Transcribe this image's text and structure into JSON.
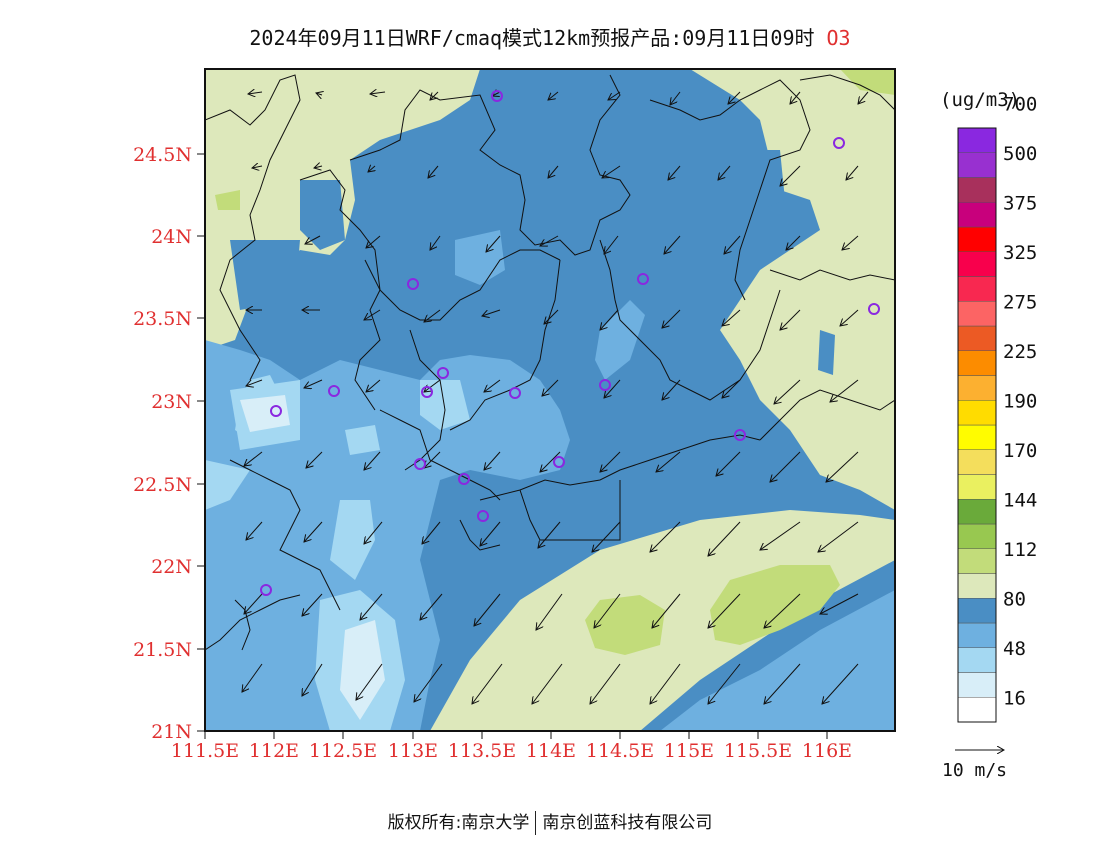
{
  "title": {
    "main": "2024年09月11日WRF/cmaq模式12km预报产品:09月11日09时",
    "species": "O3"
  },
  "colorbar": {
    "unit": "(ug/m3)",
    "labels": [
      "16",
      "48",
      "80",
      "112",
      "144",
      "170",
      "190",
      "225",
      "275",
      "325",
      "375",
      "500",
      "700"
    ],
    "colors": [
      "#ffffff",
      "#d8eef8",
      "#a4d8f2",
      "#6eb0e0",
      "#4a8ec4",
      "#dde8bb",
      "#c2dc7a",
      "#98c850",
      "#6aaa3a",
      "#eaf060",
      "#f4de5c",
      "#fffc00",
      "#ffdc00",
      "#fcb030",
      "#fc8c00",
      "#ec5a24",
      "#fc6464",
      "#f82850",
      "#f8004c",
      "#ff0000",
      "#c8007c",
      "#a8305c",
      "#9830d0",
      "#8a28e0"
    ]
  },
  "axes": {
    "lat_labels": [
      "24.5N",
      "24N",
      "23.5N",
      "23N",
      "22.5N",
      "22N",
      "21.5N",
      "21N"
    ],
    "lon_labels": [
      "111.5E",
      "112E",
      "112.5E",
      "113E",
      "113.5E",
      "114E",
      "114.5E",
      "115E",
      "115.5E",
      "116E"
    ]
  },
  "wind": {
    "reference_label": "10 m/s"
  },
  "copyright": {
    "prefix": "版权所有:南京大学",
    "company": "南京创蓝科技有限公司"
  },
  "colors": {
    "label_red": "#e03030",
    "station_marker": "#8a28e0"
  }
}
